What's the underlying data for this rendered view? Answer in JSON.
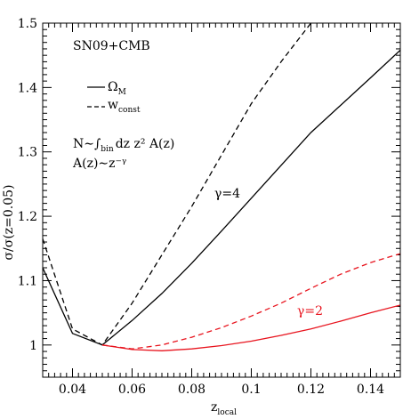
{
  "chart_data": {
    "type": "line",
    "xlabel": {
      "main": "z",
      "sub": "local"
    },
    "ylabel": "σ/σ(z=0.05)",
    "xlim": [
      0.03,
      0.15
    ],
    "ylim": [
      0.95,
      1.5
    ],
    "x_ticks": [
      0.04,
      0.06,
      0.08,
      0.1,
      0.12,
      0.14
    ],
    "x_tick_labels": [
      "0.04",
      "0.06",
      "0.08",
      "0.1",
      "0.12",
      "0.14"
    ],
    "y_ticks": [
      1.0,
      1.1,
      1.2,
      1.3,
      1.4,
      1.5
    ],
    "y_tick_labels": [
      "1",
      "1.1",
      "1.2",
      "1.3",
      "1.4",
      "1.5"
    ],
    "annotations": {
      "dataset": "SN09+CMB",
      "formula_line1_prefix": "N∼∫",
      "formula_line1_sub": "bin",
      "formula_line1_suffix": "dz z² A(z)",
      "formula_line2": "A(z)∼z⁻ᵞ",
      "gamma4": "γ=4",
      "gamma2": "γ=2"
    },
    "legend": {
      "placement": "top-left",
      "entries": [
        {
          "main": "Ω",
          "sub": "M",
          "style": "solid"
        },
        {
          "main": "w",
          "sub": "const",
          "style": "dashed"
        }
      ]
    },
    "colors": {
      "gamma4": "#000000",
      "gamma2": "#e8141e"
    },
    "series": [
      {
        "group": "gamma4",
        "style": "solid",
        "color": "#000000",
        "x": [
          0.03,
          0.04,
          0.05,
          0.06,
          0.07,
          0.08,
          0.09,
          0.1,
          0.12,
          0.14,
          0.15
        ],
        "y": [
          1.12,
          1.018,
          1.0,
          1.038,
          1.08,
          1.127,
          1.177,
          1.228,
          1.33,
          1.415,
          1.458
        ]
      },
      {
        "group": "gamma4",
        "style": "dashed",
        "color": "#000000",
        "x": [
          0.03,
          0.04,
          0.05,
          0.06,
          0.07,
          0.08,
          0.09,
          0.1,
          0.11,
          0.12
        ],
        "y": [
          1.165,
          1.025,
          1.0,
          1.065,
          1.14,
          1.215,
          1.295,
          1.375,
          1.44,
          1.5
        ]
      },
      {
        "group": "gamma2",
        "style": "solid",
        "color": "#e8141e",
        "x": [
          0.05,
          0.06,
          0.07,
          0.08,
          0.09,
          0.1,
          0.11,
          0.12,
          0.13,
          0.14,
          0.15
        ],
        "y": [
          1.0,
          0.993,
          0.991,
          0.994,
          0.999,
          1.006,
          1.015,
          1.025,
          1.037,
          1.05,
          1.062
        ]
      },
      {
        "group": "gamma2",
        "style": "dashed",
        "color": "#e8141e",
        "x": [
          0.05,
          0.06,
          0.07,
          0.08,
          0.09,
          0.1,
          0.11,
          0.12,
          0.13,
          0.14,
          0.15
        ],
        "y": [
          1.0,
          0.994,
          1.0,
          1.012,
          1.027,
          1.045,
          1.065,
          1.088,
          1.11,
          1.128,
          1.142
        ]
      }
    ]
  }
}
